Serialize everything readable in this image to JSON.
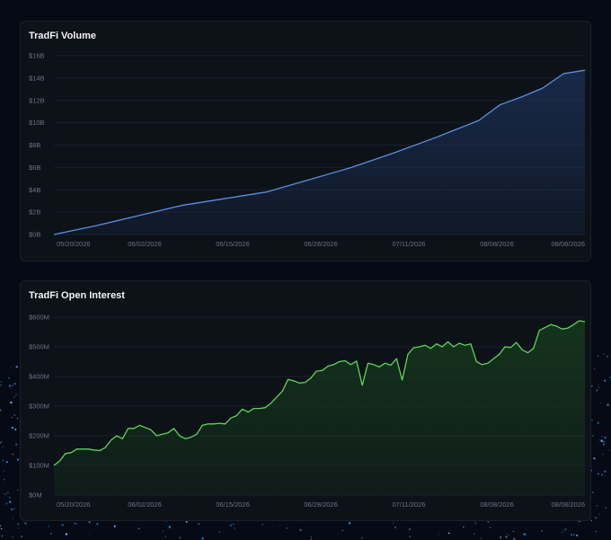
{
  "colors": {
    "background": "#050a14",
    "card": "#0d1118",
    "volume_line": "#5b8fe0",
    "volume_fill": "#1a2e52",
    "oi_line": "#5ed35a",
    "oi_fill": "#163a1e"
  },
  "chart_data": [
    {
      "type": "area",
      "title": "TradFi Volume",
      "xlabel": "",
      "ylabel": "",
      "ylim": [
        0,
        16
      ],
      "y_unit": "$B",
      "grid": true,
      "y_tick_labels": [
        "$0B",
        "$2B",
        "$4B",
        "$6B",
        "$8B",
        "$10B",
        "$12B",
        "$14B",
        "$16B"
      ],
      "x_tick_labels": [
        "05/20/2026",
        "06/02/2026",
        "06/15/2026",
        "06/28/2026",
        "07/11/2026",
        "08/08/2026",
        "08/08/2026"
      ],
      "x": [
        0,
        8,
        16,
        24,
        32,
        40,
        48,
        56,
        64,
        72,
        80,
        84,
        88,
        92,
        96,
        100
      ],
      "values": [
        0.0,
        0.8,
        1.7,
        2.6,
        3.2,
        3.8,
        4.9,
        6.0,
        7.3,
        8.7,
        10.2,
        11.6,
        12.3,
        13.1,
        14.4,
        14.7
      ]
    },
    {
      "type": "area",
      "title": "TradFi Open Interest",
      "xlabel": "",
      "ylabel": "",
      "ylim": [
        0,
        600
      ],
      "y_unit": "$M",
      "grid": true,
      "y_tick_labels": [
        "$0M",
        "$100M",
        "$200M",
        "$300M",
        "$400M",
        "$500M",
        "$600M"
      ],
      "x_tick_labels": [
        "05/20/2026",
        "06/02/2026",
        "06/15/2026",
        "06/28/2026",
        "07/11/2026",
        "08/08/2026",
        "08/08/2026"
      ],
      "values": [
        100,
        115,
        140,
        143,
        155,
        155,
        155,
        152,
        150,
        160,
        185,
        200,
        190,
        225,
        225,
        235,
        228,
        220,
        200,
        205,
        210,
        225,
        200,
        190,
        195,
        205,
        235,
        240,
        240,
        242,
        240,
        260,
        268,
        290,
        280,
        292,
        292,
        295,
        310,
        330,
        350,
        390,
        385,
        378,
        380,
        395,
        418,
        420,
        435,
        440,
        450,
        453,
        440,
        452,
        370,
        445,
        440,
        432,
        445,
        438,
        460,
        388,
        475,
        497,
        500,
        505,
        495,
        510,
        500,
        517,
        500,
        512,
        505,
        510,
        450,
        440,
        445,
        460,
        475,
        500,
        498,
        515,
        490,
        480,
        495,
        555,
        565,
        575,
        570,
        560,
        563,
        575,
        588,
        585
      ]
    }
  ]
}
